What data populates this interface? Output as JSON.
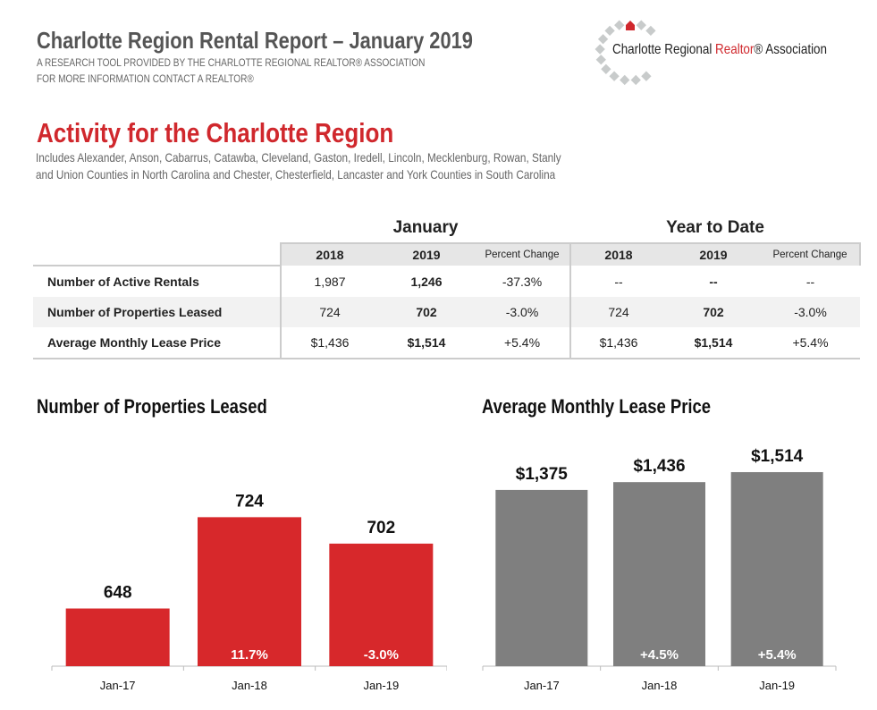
{
  "header": {
    "title": "Charlotte Region Rental Report – January 2019",
    "subtitle1": "A RESEARCH TOOL PROVIDED BY THE CHARLOTTE REGIONAL REALTOR® ASSOCIATION",
    "subtitle2": "FOR MORE INFORMATION CONTACT A REALTOR®",
    "logo_text_1": "Charlotte Regional ",
    "logo_text_2": "Realtor",
    "logo_text_3": "® Association"
  },
  "section": {
    "title": "Activity for the Charlotte Region",
    "includes_1": "Includes Alexander, Anson, Cabarrus, Catawba, Cleveland, Gaston, Iredell, Lincoln, Mecklenburg, Rowan, Stanly",
    "includes_2": "and Union Counties in North Carolina and Chester, Chesterfield, Lancaster and York Counties in South Carolina"
  },
  "table": {
    "groups": [
      "January",
      "Year to Date"
    ],
    "columns": [
      "2018",
      "2019",
      "Percent Change",
      "2018",
      "2019",
      "Percent Change"
    ],
    "rows": [
      {
        "label": "Number of Active Rentals",
        "cells": [
          "1,987",
          "1,246",
          "-37.3%",
          "--",
          "--",
          "--"
        ]
      },
      {
        "label": "Number of Properties Leased",
        "cells": [
          "724",
          "702",
          "-3.0%",
          "724",
          "702",
          "-3.0%"
        ]
      },
      {
        "label": "Average Monthly Lease Price",
        "cells": [
          "$1,436",
          "$1,514",
          "+5.4%",
          "$1,436",
          "$1,514",
          "+5.4%"
        ]
      }
    ]
  },
  "colors": {
    "accent": "#d0282d",
    "bar_red": "#d7282b",
    "bar_gray": "#7f7f7f",
    "text_gray": "#555555"
  },
  "chart_data": [
    {
      "type": "bar",
      "title": "Number of Properties Leased",
      "categories": [
        "Jan-17",
        "Jan-18",
        "Jan-19"
      ],
      "values": [
        648,
        724,
        702
      ],
      "value_labels": [
        "648",
        "724",
        "702"
      ],
      "change_labels": [
        "",
        "11.7%",
        "-3.0%"
      ],
      "ylim": [
        600,
        760
      ],
      "grid": false,
      "color": "#d7282b"
    },
    {
      "type": "bar",
      "title": "Average Monthly Lease Price",
      "categories": [
        "Jan-17",
        "Jan-18",
        "Jan-19"
      ],
      "values": [
        1375,
        1436,
        1514
      ],
      "value_labels": [
        "$1,375",
        "$1,436",
        "$1,514"
      ],
      "change_labels": [
        "",
        "+4.5%",
        "+5.4%"
      ],
      "ylim": [
        0,
        1500
      ],
      "grid": false,
      "color": "#7f7f7f"
    }
  ]
}
